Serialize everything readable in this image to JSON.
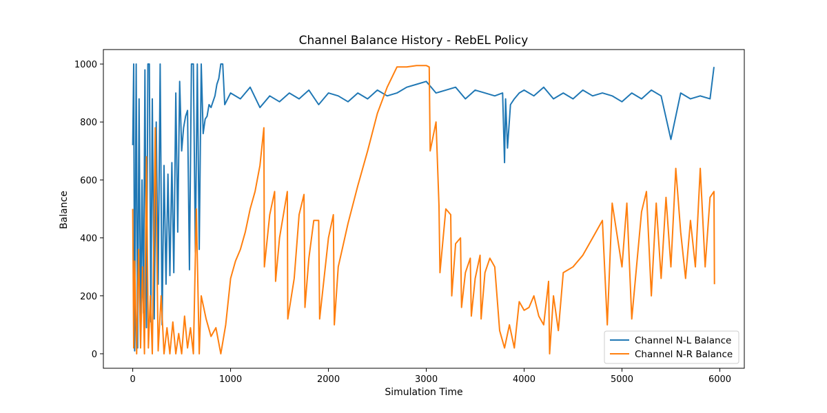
{
  "chart_data": {
    "type": "line",
    "title": "Channel Balance History - RebEL Policy",
    "xlabel": "Simulation Time",
    "ylabel": "Balance",
    "xlim": [
      -300,
      6250
    ],
    "ylim": [
      -50,
      1050
    ],
    "xticks": [
      0,
      1000,
      2000,
      3000,
      4000,
      5000,
      6000
    ],
    "yticks": [
      0,
      200,
      400,
      600,
      800,
      1000
    ],
    "grid": false,
    "legend_position": "lower-right",
    "series": [
      {
        "name": "Channel N-L Balance",
        "color": "#1f77b4",
        "x": [
          0,
          10,
          20,
          35,
          50,
          65,
          80,
          95,
          110,
          125,
          140,
          155,
          170,
          185,
          200,
          220,
          240,
          260,
          280,
          300,
          320,
          340,
          360,
          380,
          400,
          420,
          440,
          460,
          480,
          500,
          520,
          540,
          560,
          580,
          600,
          620,
          640,
          660,
          680,
          700,
          720,
          740,
          760,
          780,
          800,
          820,
          840,
          860,
          880,
          900,
          920,
          940,
          1000,
          1100,
          1200,
          1300,
          1400,
          1500,
          1600,
          1700,
          1800,
          1900,
          2000,
          2100,
          2200,
          2300,
          2400,
          2500,
          2600,
          2700,
          2800,
          2900,
          3000,
          3100,
          3200,
          3300,
          3400,
          3500,
          3600,
          3700,
          3780,
          3800,
          3810,
          3830,
          3860,
          3900,
          3950,
          4000,
          4100,
          4200,
          4300,
          4400,
          4500,
          4600,
          4700,
          4800,
          4900,
          5000,
          5100,
          5200,
          5300,
          5400,
          5500,
          5600,
          5700,
          5800,
          5900,
          5940
        ],
        "values": [
          720,
          1000,
          10,
          1000,
          20,
          880,
          60,
          600,
          140,
          980,
          90,
          1000,
          1000,
          110,
          880,
          120,
          800,
          240,
          1000,
          100,
          650,
          240,
          620,
          270,
          660,
          280,
          900,
          420,
          940,
          700,
          780,
          820,
          840,
          290,
          1000,
          1000,
          350,
          1000,
          360,
          1000,
          760,
          810,
          820,
          860,
          850,
          870,
          890,
          930,
          950,
          1000,
          1000,
          860,
          900,
          880,
          920,
          850,
          890,
          870,
          900,
          880,
          910,
          860,
          900,
          890,
          870,
          900,
          880,
          910,
          890,
          900,
          920,
          930,
          940,
          900,
          910,
          920,
          880,
          910,
          900,
          890,
          900,
          660,
          880,
          710,
          860,
          880,
          900,
          910,
          890,
          920,
          880,
          900,
          880,
          910,
          890,
          900,
          890,
          870,
          900,
          880,
          910,
          890,
          740,
          900,
          880,
          890,
          880,
          990
        ]
      },
      {
        "name": "Channel N-R Balance",
        "color": "#ff7f0e",
        "x": [
          0,
          10,
          20,
          40,
          60,
          80,
          100,
          120,
          140,
          160,
          180,
          200,
          230,
          260,
          290,
          320,
          350,
          380,
          410,
          440,
          470,
          500,
          530,
          560,
          590,
          620,
          650,
          680,
          700,
          750,
          800,
          850,
          900,
          950,
          1000,
          1050,
          1100,
          1150,
          1200,
          1250,
          1300,
          1340,
          1345,
          1400,
          1450,
          1460,
          1500,
          1580,
          1585,
          1650,
          1700,
          1750,
          1760,
          1800,
          1850,
          1900,
          1910,
          2000,
          2050,
          2060,
          2100,
          2200,
          2300,
          2400,
          2500,
          2600,
          2700,
          2800,
          2900,
          3000,
          3030,
          3040,
          3100,
          3130,
          3140,
          3200,
          3250,
          3260,
          3300,
          3350,
          3360,
          3400,
          3450,
          3460,
          3500,
          3550,
          3560,
          3600,
          3650,
          3700,
          3750,
          3800,
          3850,
          3900,
          3950,
          4000,
          4050,
          4100,
          4150,
          4200,
          4250,
          4260,
          4300,
          4350,
          4400,
          4500,
          4600,
          4700,
          4800,
          4850,
          4900,
          5000,
          5050,
          5100,
          5200,
          5250,
          5300,
          5350,
          5400,
          5450,
          5500,
          5550,
          5600,
          5650,
          5700,
          5750,
          5800,
          5850,
          5900,
          5940,
          5945
        ],
        "values": [
          500,
          20,
          320,
          0,
          360,
          20,
          300,
          0,
          680,
          20,
          200,
          0,
          780,
          10,
          200,
          0,
          90,
          0,
          110,
          0,
          70,
          0,
          130,
          20,
          90,
          0,
          500,
          0,
          200,
          120,
          60,
          90,
          0,
          100,
          260,
          320,
          360,
          420,
          500,
          560,
          650,
          780,
          300,
          480,
          560,
          250,
          400,
          560,
          120,
          260,
          480,
          550,
          160,
          330,
          460,
          460,
          120,
          400,
          480,
          100,
          300,
          450,
          580,
          700,
          830,
          920,
          990,
          990,
          995,
          995,
          990,
          700,
          800,
          510,
          280,
          500,
          480,
          200,
          380,
          400,
          160,
          280,
          330,
          130,
          260,
          340,
          120,
          280,
          330,
          300,
          80,
          20,
          100,
          20,
          180,
          150,
          160,
          200,
          130,
          100,
          250,
          0,
          200,
          80,
          280,
          300,
          340,
          400,
          460,
          100,
          520,
          300,
          520,
          120,
          490,
          560,
          200,
          520,
          260,
          540,
          300,
          640,
          420,
          260,
          460,
          300,
          640,
          300,
          540,
          560,
          240
        ]
      }
    ]
  }
}
